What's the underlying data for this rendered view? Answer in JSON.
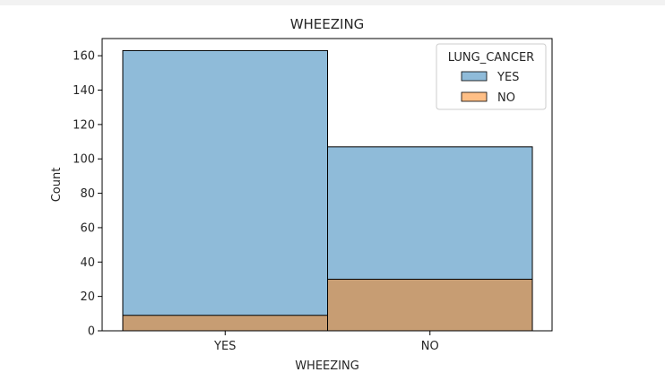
{
  "chart_data": {
    "type": "bar",
    "title": "WHEEZING",
    "xlabel": "WHEEZING",
    "ylabel": "Count",
    "categories": [
      "YES",
      "NO"
    ],
    "ylim": [
      0,
      170
    ],
    "yticks": [
      0,
      20,
      40,
      60,
      80,
      100,
      120,
      140,
      160
    ],
    "grid": false,
    "stacked": false,
    "overlay": true,
    "legend": {
      "title": "LUNG_CANCER",
      "placement": "top-right"
    },
    "series": [
      {
        "name": "YES",
        "values": [
          163,
          107
        ],
        "color": "#1f77b4",
        "opacity": 0.5
      },
      {
        "name": "NO",
        "values": [
          9,
          30
        ],
        "color": "#ff7f0e",
        "opacity": 0.5
      }
    ]
  }
}
